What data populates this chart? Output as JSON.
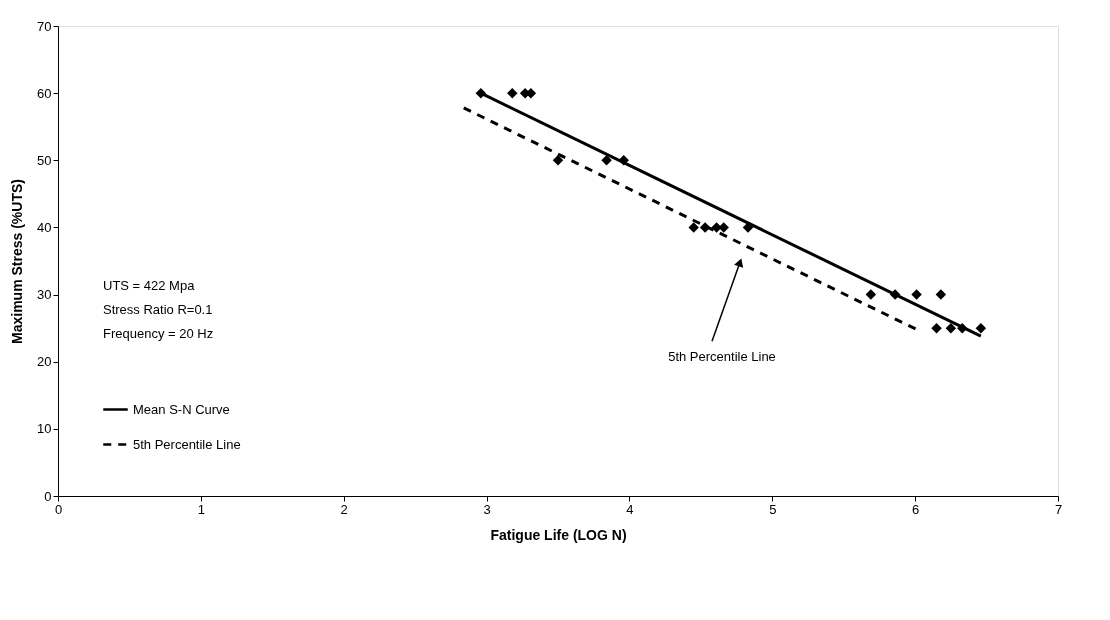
{
  "chart_data": {
    "type": "scatter",
    "xlabel": "Fatigue Life (LOG N)",
    "ylabel": "Maximum Stress (%UTS)",
    "xlim": [
      0,
      7
    ],
    "xticks": [
      0,
      1,
      2,
      3,
      4,
      5,
      6,
      7
    ],
    "ylim": [
      0,
      70
    ],
    "yticks": [
      0,
      10,
      20,
      30,
      40,
      50,
      60,
      70
    ],
    "grid": false,
    "legend": "bottom left",
    "series": [
      {
        "color": "#000000",
        "marker": "diamond",
        "x": [
          2.96,
          3.18,
          3.27,
          3.31,
          3.5,
          3.84,
          3.96,
          4.45,
          4.53,
          4.61,
          4.66,
          4.83,
          5.69,
          5.86,
          6.01,
          6.18,
          6.15,
          6.25,
          6.33,
          6.46
        ],
        "values": [
          60,
          60,
          60,
          60,
          50,
          50,
          50,
          40,
          40,
          40,
          40,
          40,
          30,
          30,
          30,
          30,
          25,
          25,
          25,
          25
        ]
      },
      {
        "type": "line",
        "name": "Mean S-N Curve",
        "color": "#000000",
        "line_style": "solid",
        "x": [
          2.96,
          6.46
        ],
        "values": [
          60,
          23.8
        ]
      },
      {
        "type": "line",
        "name": "5th Percentile Line",
        "color": "#000000",
        "line_style": "dashed",
        "x": [
          2.84,
          6.02
        ],
        "values": [
          57.8,
          24.7
        ]
      }
    ],
    "annotations": [
      "UTS = 422 Mpa",
      "Stress Ratio R=0.1",
      "Frequency = 20 Hz",
      "5th Percentile Line"
    ]
  }
}
